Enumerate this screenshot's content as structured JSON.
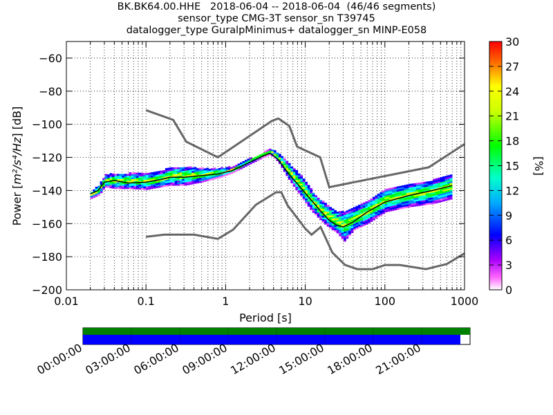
{
  "title": {
    "line1": "BK.BK64.00.HHE   2018-06-04 -- 2018-06-04  (46/46 segments)",
    "line2": "sensor_type CMG-3T sensor_sn T39745",
    "line3": "datalogger_type GuralpMinimus+ datalogger_sn MINP-E058"
  },
  "chart_data": {
    "type": "heatmap",
    "xlabel": "Period [s]",
    "ylabel_prefix": "Power [",
    "ylabel_units": "m²/s⁴/Hz",
    "ylabel_suffix": "] [dB]",
    "x_scale": "log",
    "xlim": [
      0.01,
      1000
    ],
    "ylim": [
      -200,
      -50
    ],
    "x_ticks": [
      {
        "value": 0.01,
        "label": "0.01"
      },
      {
        "value": 0.1,
        "label": "0.1"
      },
      {
        "value": 1,
        "label": "1"
      },
      {
        "value": 10,
        "label": "10"
      },
      {
        "value": 100,
        "label": "100"
      },
      {
        "value": 1000,
        "label": "1000"
      }
    ],
    "y_ticks": [
      -60,
      -80,
      -100,
      -120,
      -140,
      -160,
      -180,
      -200
    ],
    "grid": true,
    "colorbar": {
      "label": "[%]",
      "min": 0,
      "max": 30,
      "ticks": [
        0,
        3,
        6,
        9,
        12,
        15,
        18,
        21,
        24,
        27,
        30
      ],
      "colormap": "pqlx"
    },
    "noise_models": [
      {
        "name": "high",
        "points": [
          [
            0.1,
            -91.5
          ],
          [
            0.22,
            -97.4
          ],
          [
            0.32,
            -110.5
          ],
          [
            0.8,
            -120
          ],
          [
            3.8,
            -98
          ],
          [
            4.6,
            -96.5
          ],
          [
            6.3,
            -101
          ],
          [
            7.9,
            -113.5
          ],
          [
            15.4,
            -120
          ],
          [
            20,
            -138
          ],
          [
            354.8,
            -126
          ],
          [
            1000,
            -112
          ]
        ]
      },
      {
        "name": "low",
        "points": [
          [
            0.1,
            -168
          ],
          [
            0.17,
            -166.7
          ],
          [
            0.4,
            -166.7
          ],
          [
            0.8,
            -169.2
          ],
          [
            1.24,
            -163.7
          ],
          [
            2.4,
            -148.6
          ],
          [
            4.3,
            -141.1
          ],
          [
            5,
            -141.1
          ],
          [
            6,
            -149
          ],
          [
            10,
            -163
          ],
          [
            12,
            -166.7
          ],
          [
            15.6,
            -162.1
          ],
          [
            21.9,
            -177.5
          ],
          [
            31.6,
            -185
          ],
          [
            45,
            -187.5
          ],
          [
            70,
            -187.5
          ],
          [
            101,
            -185
          ],
          [
            154,
            -185
          ],
          [
            328,
            -187.5
          ],
          [
            600,
            -184.4
          ],
          [
            1000,
            -178
          ]
        ]
      }
    ],
    "median_curve": {
      "points": [
        [
          0.02,
          -142
        ],
        [
          0.025,
          -140
        ],
        [
          0.03,
          -135
        ],
        [
          0.04,
          -134
        ],
        [
          0.06,
          -135.5
        ],
        [
          0.1,
          -135
        ],
        [
          0.15,
          -133.5
        ],
        [
          0.2,
          -132
        ],
        [
          0.3,
          -132
        ],
        [
          0.5,
          -131
        ],
        [
          0.8,
          -130
        ],
        [
          1.2,
          -128
        ],
        [
          2,
          -123
        ],
        [
          3,
          -119
        ],
        [
          3.6,
          -117.5
        ],
        [
          4.5,
          -121
        ],
        [
          6,
          -129
        ],
        [
          9,
          -139
        ],
        [
          12,
          -146
        ],
        [
          16,
          -153
        ],
        [
          20,
          -158
        ],
        [
          25,
          -161
        ],
        [
          30,
          -162
        ],
        [
          40,
          -159
        ],
        [
          60,
          -153
        ],
        [
          100,
          -147
        ],
        [
          200,
          -143
        ],
        [
          400,
          -140
        ],
        [
          700,
          -137
        ]
      ]
    },
    "psd_band": {
      "period_points": [
        0.02,
        0.025,
        0.03,
        0.04,
        0.06,
        0.1,
        0.15,
        0.2,
        0.3,
        0.5,
        0.8,
        1.2,
        2,
        3,
        3.6,
        4.5,
        6,
        9,
        12,
        16,
        20,
        25,
        30,
        40,
        60,
        100,
        200,
        400,
        700
      ],
      "upper_db": [
        -141,
        -137,
        -131,
        -130,
        -130,
        -130,
        -129,
        -126,
        -126,
        -127,
        -127,
        -126,
        -121,
        -117,
        -115,
        -118,
        -124,
        -132,
        -141,
        -147,
        -150,
        -153,
        -153,
        -151,
        -146,
        -139,
        -136,
        -134,
        -130
      ],
      "lower_db": [
        -145,
        -143,
        -138,
        -139,
        -139,
        -139.5,
        -138,
        -137,
        -137,
        -135,
        -132.5,
        -129.5,
        -124,
        -120,
        -118.5,
        -123,
        -133,
        -145,
        -153,
        -159,
        -163,
        -166,
        -171,
        -164,
        -160,
        -153,
        -150,
        -148,
        -145
      ]
    }
  },
  "time_bar": {
    "labels": [
      "00:00:00",
      "03:00:00",
      "06:00:00",
      "09:00:00",
      "12:00:00",
      "15:00:00",
      "18:00:00",
      "21:00:00"
    ],
    "green_color": "#008000",
    "blue_color": "#0000ff",
    "blue_coverage_fraction": 0.975
  }
}
